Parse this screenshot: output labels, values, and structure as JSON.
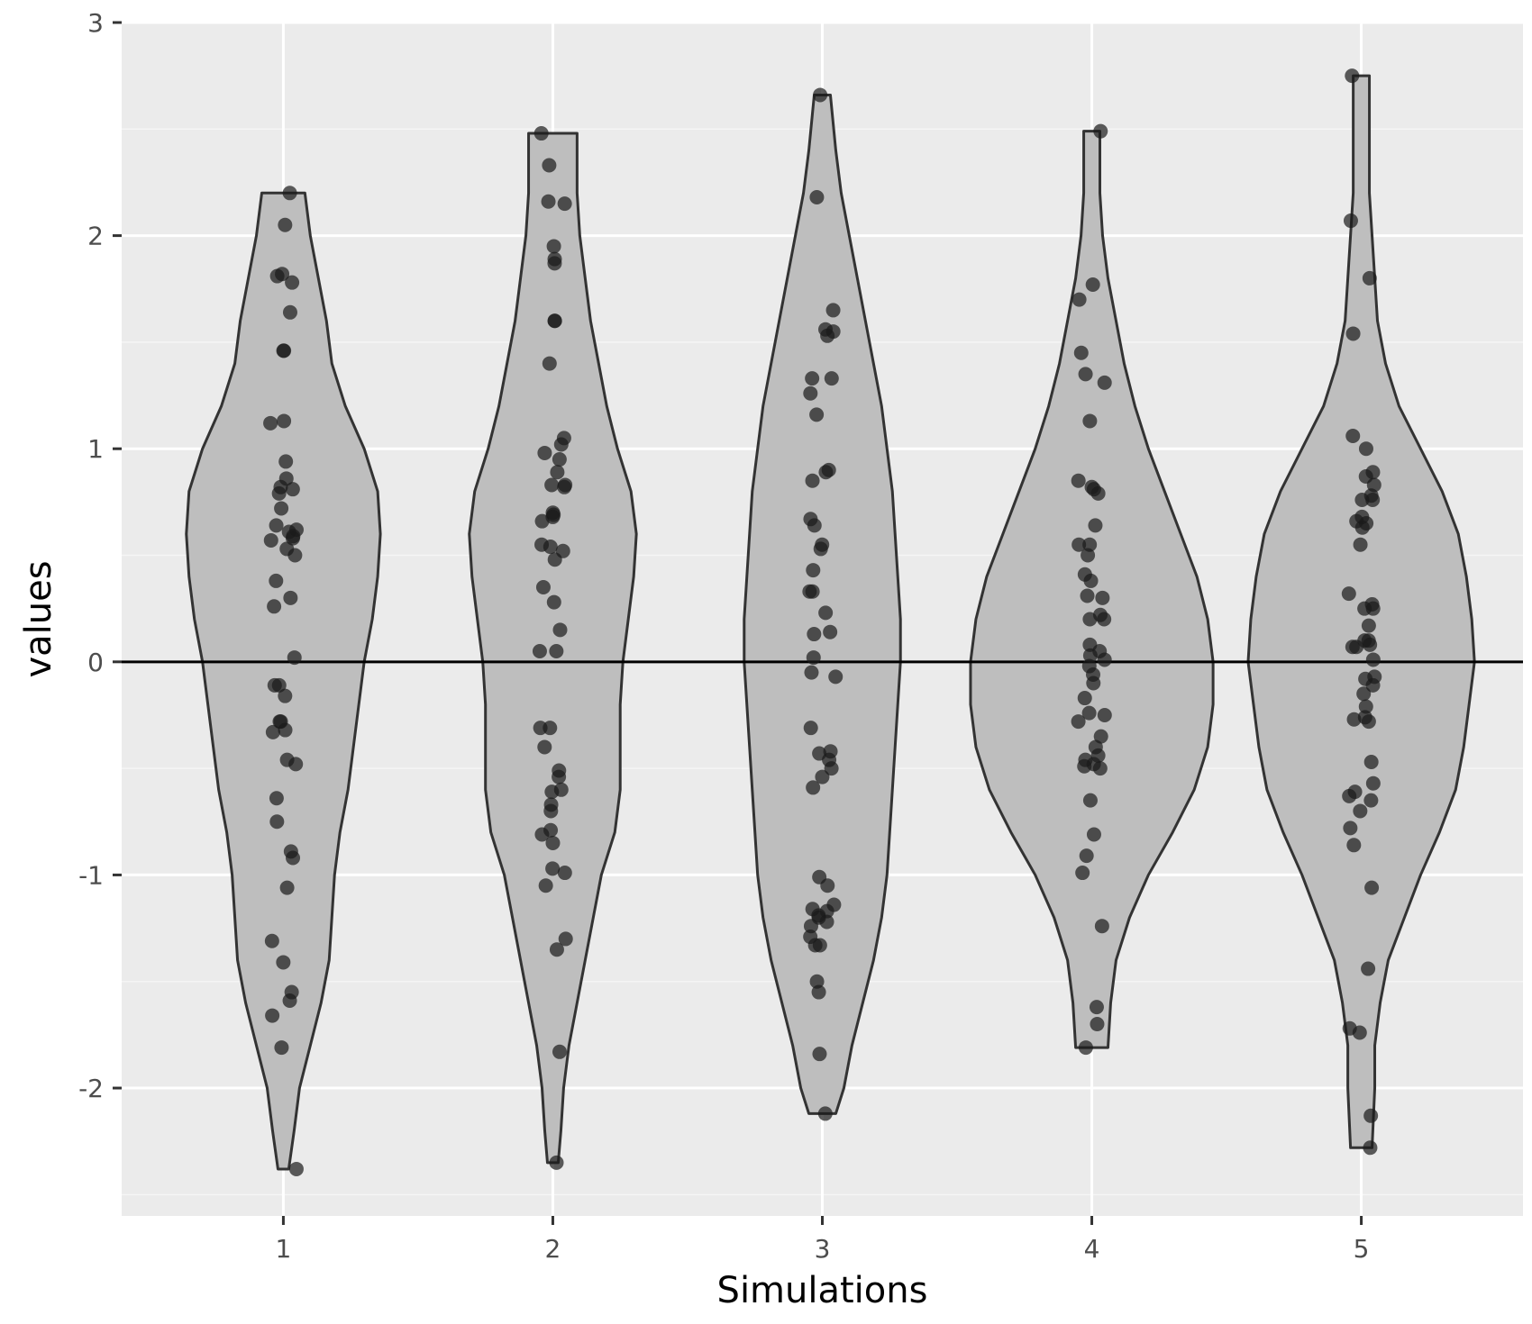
{
  "chart_data": {
    "type": "violin",
    "title": "",
    "xlabel": "Simulations",
    "ylabel": "values",
    "categories": [
      "1",
      "2",
      "3",
      "4",
      "5"
    ],
    "ylim": [
      -2.6,
      3.0
    ],
    "yticks": [
      -2,
      -1,
      0,
      1,
      2,
      3
    ],
    "yticks_labels": [
      "-2",
      "-1",
      "0",
      "1",
      "2",
      "3"
    ],
    "reference_line": {
      "y": 0,
      "color": "#000000"
    },
    "grid": true,
    "legend": "none",
    "colors": {
      "panel_background": "#ebebeb",
      "grid_major": "#ffffff",
      "grid_minor": "#f5f5f5",
      "violin_fill": "#bebebe",
      "violin_outline": "#333333",
      "points": "#1a1a1a"
    },
    "violins": [
      {
        "category": "1",
        "min": -2.38,
        "max": 2.2,
        "profile": [
          [
            -2.38,
            0.02
          ],
          [
            -2.2,
            0.04
          ],
          [
            -2.0,
            0.06
          ],
          [
            -1.8,
            0.1
          ],
          [
            -1.6,
            0.14
          ],
          [
            -1.4,
            0.17
          ],
          [
            -1.2,
            0.18
          ],
          [
            -1.0,
            0.19
          ],
          [
            -0.8,
            0.21
          ],
          [
            -0.6,
            0.24
          ],
          [
            -0.4,
            0.26
          ],
          [
            -0.2,
            0.28
          ],
          [
            0.0,
            0.3
          ],
          [
            0.2,
            0.33
          ],
          [
            0.4,
            0.35
          ],
          [
            0.6,
            0.36
          ],
          [
            0.8,
            0.35
          ],
          [
            1.0,
            0.3
          ],
          [
            1.2,
            0.23
          ],
          [
            1.4,
            0.18
          ],
          [
            1.6,
            0.16
          ],
          [
            1.8,
            0.13
          ],
          [
            2.0,
            0.1
          ],
          [
            2.2,
            0.08
          ]
        ],
        "points": [
          2.2,
          2.05,
          1.82,
          1.81,
          1.78,
          1.64,
          1.46,
          1.46,
          1.13,
          1.12,
          0.94,
          0.86,
          0.82,
          0.81,
          0.79,
          0.72,
          0.64,
          0.62,
          0.61,
          0.59,
          0.58,
          0.57,
          0.53,
          0.5,
          0.38,
          0.3,
          0.26,
          0.02,
          -0.11,
          -0.11,
          -0.16,
          -0.28,
          -0.28,
          -0.32,
          -0.33,
          -0.46,
          -0.48,
          -0.64,
          -0.75,
          -0.89,
          -0.92,
          -1.06,
          -1.31,
          -1.41,
          -1.55,
          -1.59,
          -1.66,
          -1.81,
          -2.38
        ]
      },
      {
        "category": "2",
        "min": -2.35,
        "max": 2.48,
        "profile": [
          [
            -2.35,
            0.02
          ],
          [
            -2.2,
            0.03
          ],
          [
            -2.0,
            0.04
          ],
          [
            -1.8,
            0.06
          ],
          [
            -1.6,
            0.09
          ],
          [
            -1.4,
            0.12
          ],
          [
            -1.2,
            0.15
          ],
          [
            -1.0,
            0.18
          ],
          [
            -0.8,
            0.23
          ],
          [
            -0.6,
            0.25
          ],
          [
            -0.4,
            0.25
          ],
          [
            -0.2,
            0.25
          ],
          [
            0.0,
            0.26
          ],
          [
            0.2,
            0.28
          ],
          [
            0.4,
            0.3
          ],
          [
            0.6,
            0.31
          ],
          [
            0.8,
            0.29
          ],
          [
            1.0,
            0.24
          ],
          [
            1.2,
            0.2
          ],
          [
            1.4,
            0.17
          ],
          [
            1.6,
            0.14
          ],
          [
            1.8,
            0.12
          ],
          [
            2.0,
            0.1
          ],
          [
            2.2,
            0.09
          ],
          [
            2.48,
            0.09
          ]
        ],
        "points": [
          2.48,
          2.33,
          2.16,
          2.15,
          1.95,
          1.89,
          1.87,
          1.6,
          1.6,
          1.4,
          1.05,
          1.02,
          0.98,
          0.95,
          0.89,
          0.83,
          0.83,
          0.82,
          0.7,
          0.69,
          0.68,
          0.66,
          0.55,
          0.54,
          0.52,
          0.48,
          0.35,
          0.28,
          0.15,
          0.05,
          0.05,
          -0.31,
          -0.31,
          -0.4,
          -0.51,
          -0.54,
          -0.6,
          -0.61,
          -0.67,
          -0.7,
          -0.79,
          -0.81,
          -0.85,
          -0.97,
          -0.99,
          -1.05,
          -1.3,
          -1.35,
          -1.83,
          -2.35
        ]
      },
      {
        "category": "3",
        "min": -2.12,
        "max": 2.66,
        "profile": [
          [
            -2.12,
            0.05
          ],
          [
            -2.0,
            0.08
          ],
          [
            -1.8,
            0.11
          ],
          [
            -1.6,
            0.15
          ],
          [
            -1.4,
            0.19
          ],
          [
            -1.2,
            0.22
          ],
          [
            -1.0,
            0.24
          ],
          [
            -0.8,
            0.25
          ],
          [
            -0.6,
            0.26
          ],
          [
            -0.4,
            0.27
          ],
          [
            -0.2,
            0.28
          ],
          [
            0.0,
            0.29
          ],
          [
            0.2,
            0.29
          ],
          [
            0.4,
            0.28
          ],
          [
            0.6,
            0.27
          ],
          [
            0.8,
            0.26
          ],
          [
            1.0,
            0.24
          ],
          [
            1.2,
            0.22
          ],
          [
            1.4,
            0.19
          ],
          [
            1.6,
            0.16
          ],
          [
            1.8,
            0.13
          ],
          [
            2.0,
            0.1
          ],
          [
            2.2,
            0.07
          ],
          [
            2.4,
            0.05
          ],
          [
            2.66,
            0.03
          ]
        ],
        "points": [
          2.66,
          2.18,
          1.65,
          1.56,
          1.55,
          1.53,
          1.33,
          1.33,
          1.26,
          1.16,
          0.9,
          0.89,
          0.85,
          0.67,
          0.64,
          0.55,
          0.53,
          0.43,
          0.33,
          0.33,
          0.23,
          0.14,
          0.13,
          0.02,
          -0.05,
          -0.07,
          -0.31,
          -0.42,
          -0.43,
          -0.46,
          -0.5,
          -0.54,
          -0.59,
          -1.01,
          -1.05,
          -1.14,
          -1.16,
          -1.17,
          -1.19,
          -1.2,
          -1.22,
          -1.24,
          -1.29,
          -1.33,
          -1.33,
          -1.5,
          -1.55,
          -1.84,
          -2.12
        ]
      },
      {
        "category": "4",
        "min": -1.81,
        "max": 2.49,
        "profile": [
          [
            -1.81,
            0.06
          ],
          [
            -1.6,
            0.07
          ],
          [
            -1.4,
            0.09
          ],
          [
            -1.2,
            0.14
          ],
          [
            -1.0,
            0.21
          ],
          [
            -0.8,
            0.3
          ],
          [
            -0.6,
            0.38
          ],
          [
            -0.4,
            0.43
          ],
          [
            -0.2,
            0.45
          ],
          [
            0.0,
            0.45
          ],
          [
            0.2,
            0.43
          ],
          [
            0.4,
            0.39
          ],
          [
            0.6,
            0.33
          ],
          [
            0.8,
            0.27
          ],
          [
            1.0,
            0.21
          ],
          [
            1.2,
            0.16
          ],
          [
            1.4,
            0.12
          ],
          [
            1.6,
            0.09
          ],
          [
            1.8,
            0.06
          ],
          [
            2.0,
            0.04
          ],
          [
            2.2,
            0.03
          ],
          [
            2.49,
            0.03
          ]
        ],
        "points": [
          2.49,
          1.77,
          1.7,
          1.45,
          1.35,
          1.31,
          1.13,
          0.85,
          0.82,
          0.81,
          0.79,
          0.64,
          0.55,
          0.55,
          0.5,
          0.41,
          0.38,
          0.31,
          0.3,
          0.22,
          0.2,
          0.2,
          0.08,
          0.05,
          0.03,
          0.01,
          -0.02,
          -0.06,
          -0.1,
          -0.17,
          -0.24,
          -0.25,
          -0.28,
          -0.35,
          -0.4,
          -0.44,
          -0.46,
          -0.48,
          -0.49,
          -0.5,
          -0.65,
          -0.81,
          -0.91,
          -0.99,
          -1.24,
          -1.62,
          -1.7,
          -1.81
        ]
      },
      {
        "category": "5",
        "min": -2.28,
        "max": 2.75,
        "profile": [
          [
            -2.28,
            0.04
          ],
          [
            -2.0,
            0.05
          ],
          [
            -1.8,
            0.05
          ],
          [
            -1.6,
            0.07
          ],
          [
            -1.4,
            0.1
          ],
          [
            -1.2,
            0.16
          ],
          [
            -1.0,
            0.22
          ],
          [
            -0.8,
            0.29
          ],
          [
            -0.6,
            0.35
          ],
          [
            -0.4,
            0.38
          ],
          [
            -0.2,
            0.4
          ],
          [
            0.0,
            0.42
          ],
          [
            0.2,
            0.41
          ],
          [
            0.4,
            0.39
          ],
          [
            0.6,
            0.36
          ],
          [
            0.8,
            0.3
          ],
          [
            1.0,
            0.22
          ],
          [
            1.2,
            0.14
          ],
          [
            1.4,
            0.09
          ],
          [
            1.6,
            0.06
          ],
          [
            1.8,
            0.05
          ],
          [
            2.0,
            0.04
          ],
          [
            2.2,
            0.03
          ],
          [
            2.75,
            0.03
          ]
        ],
        "points": [
          2.75,
          2.07,
          1.8,
          1.54,
          1.06,
          1.0,
          0.89,
          0.87,
          0.83,
          0.78,
          0.76,
          0.76,
          0.68,
          0.66,
          0.65,
          0.63,
          0.55,
          0.32,
          0.27,
          0.25,
          0.25,
          0.17,
          0.1,
          0.1,
          0.08,
          0.07,
          0.07,
          0.01,
          -0.07,
          -0.08,
          -0.11,
          -0.15,
          -0.21,
          -0.26,
          -0.27,
          -0.28,
          -0.47,
          -0.57,
          -0.61,
          -0.63,
          -0.65,
          -0.7,
          -0.78,
          -0.86,
          -1.06,
          -1.44,
          -1.72,
          -1.74,
          -2.13,
          -2.28
        ]
      }
    ]
  }
}
